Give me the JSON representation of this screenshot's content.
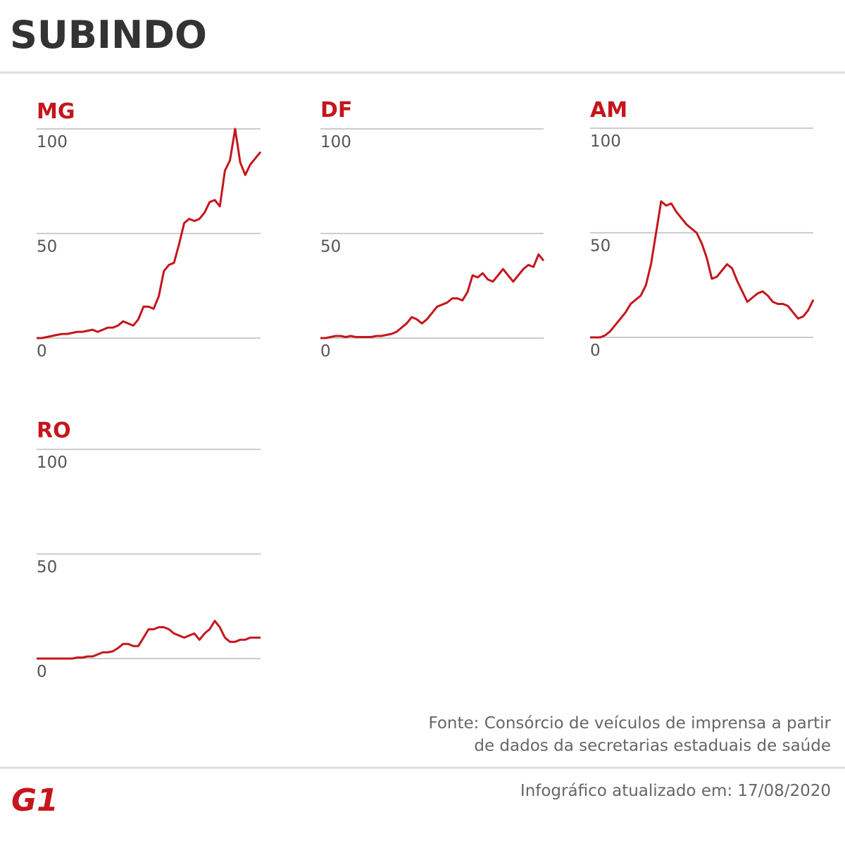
{
  "header": {
    "title": "SUBINDO"
  },
  "chart_data": [
    {
      "type": "line",
      "title": "MG",
      "color": "#c4161c",
      "ylim": [
        0,
        100
      ],
      "yticks": [
        0,
        50,
        100
      ],
      "grid": true,
      "values": [
        0,
        0,
        0.5,
        1,
        1.5,
        2,
        2,
        2.5,
        3,
        3,
        3.5,
        4,
        3,
        4,
        5,
        5,
        6,
        8,
        7,
        6,
        9,
        15,
        15,
        14,
        20,
        32,
        35,
        36,
        45,
        55,
        57,
        56,
        57,
        60,
        65,
        66,
        63,
        80,
        85,
        100,
        84,
        78,
        83,
        86,
        89
      ]
    },
    {
      "type": "line",
      "title": "DF",
      "color": "#c4161c",
      "ylim": [
        0,
        100
      ],
      "yticks": [
        0,
        50,
        100
      ],
      "grid": true,
      "values": [
        0,
        0,
        0.5,
        1,
        1,
        0.5,
        1,
        0.5,
        0.5,
        0.5,
        0.5,
        1,
        1,
        1.5,
        2,
        3,
        5,
        7,
        10,
        9,
        7,
        9,
        12,
        15,
        16,
        17,
        19,
        19,
        18,
        22,
        30,
        29,
        31,
        28,
        27,
        30,
        33,
        30,
        27,
        30,
        33,
        35,
        34,
        40,
        37
      ]
    },
    {
      "type": "line",
      "title": "AM",
      "color": "#c4161c",
      "ylim": [
        0,
        100
      ],
      "yticks": [
        0,
        50,
        100
      ],
      "grid": true,
      "values": [
        0,
        0,
        0,
        1,
        3,
        6,
        9,
        12,
        16,
        18,
        20,
        25,
        35,
        50,
        65,
        63,
        64,
        60,
        57,
        54,
        52,
        50,
        45,
        38,
        28,
        29,
        32,
        35,
        33,
        27,
        22,
        17,
        19,
        21,
        22,
        20,
        17,
        16,
        16,
        15,
        12,
        9,
        10,
        13,
        18
      ]
    },
    {
      "type": "line",
      "title": "RO",
      "color": "#c4161c",
      "ylim": [
        0,
        100
      ],
      "yticks": [
        0,
        50,
        100
      ],
      "grid": true,
      "values": [
        0,
        0,
        0,
        0,
        0,
        0,
        0,
        0,
        0.5,
        0.5,
        1,
        1,
        2,
        3,
        3,
        3.5,
        5,
        7,
        7,
        6,
        6,
        10,
        14,
        14,
        15,
        15,
        14,
        12,
        11,
        10,
        11,
        12,
        9,
        12,
        14,
        18,
        15,
        10,
        8,
        8,
        9,
        9,
        10,
        10,
        10
      ]
    }
  ],
  "footer": {
    "source": [
      "Fonte: Consórcio de veículos de imprensa a partir",
      "de dados da secretarias estaduais de saúde"
    ],
    "logo": "G1",
    "updated": "Infográfico atualizado em: 17/08/2020"
  }
}
